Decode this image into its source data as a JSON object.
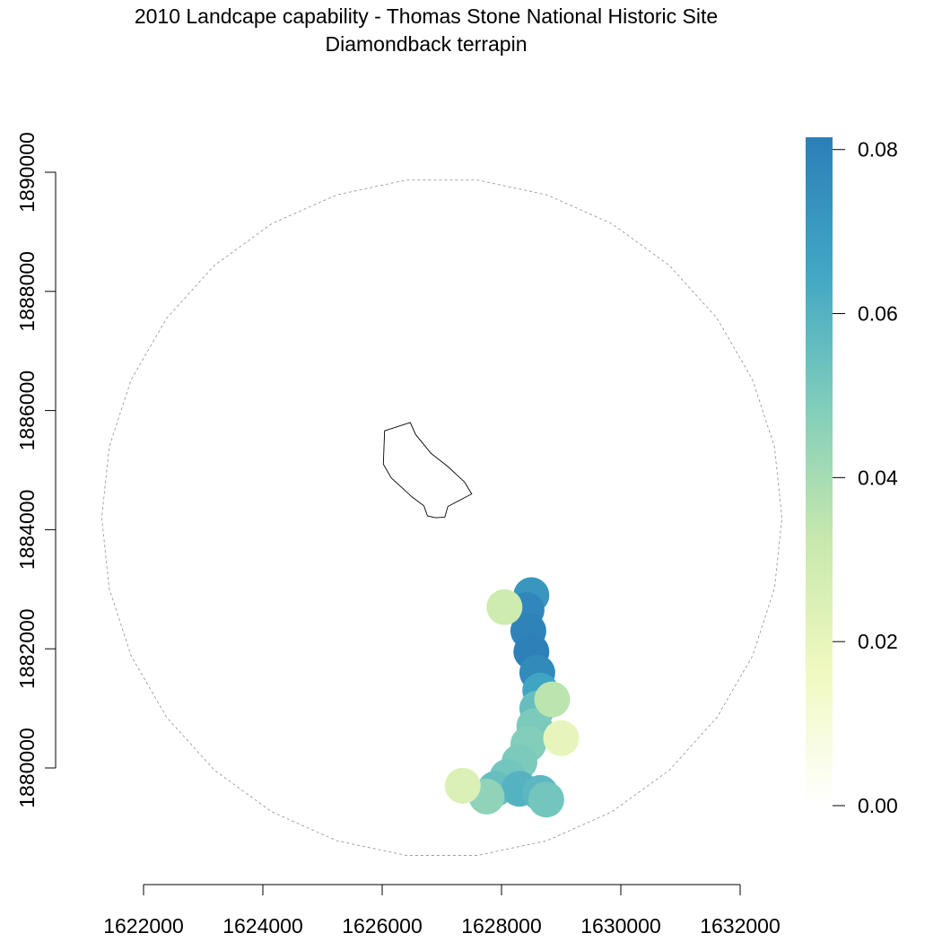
{
  "chart_data": {
    "type": "heatmap",
    "title": "2010 Landcape capability - Thomas Stone National Historic Site",
    "subtitle": "Diamondback terrapin",
    "xlabel": "",
    "ylabel": "",
    "x_ticks": [
      1622000,
      1624000,
      1626000,
      1628000,
      1630000,
      1632000
    ],
    "y_ticks": [
      1880000,
      1882000,
      1884000,
      1886000,
      1888000,
      1890000
    ],
    "x_tick_labels": [
      "1622000",
      "1624000",
      "1626000",
      "1628000",
      "1630000",
      "1632000"
    ],
    "y_tick_labels": [
      "1880000",
      "1882000",
      "1884000",
      "1886000",
      "1888000",
      "1890000"
    ],
    "xlim": [
      1622000,
      1632000
    ],
    "ylim": [
      1880000,
      1890000
    ],
    "legend": {
      "position": "right",
      "range": [
        0,
        0.0815
      ],
      "ticks": [
        0,
        0.02,
        0.04,
        0.06,
        0.08
      ],
      "tick_labels": [
        "0.00",
        "0.02",
        "0.04",
        "0.06",
        "0.08"
      ],
      "colors": [
        "#ffffff",
        "#f0f9c0",
        "#c7e8ad",
        "#7fcdbb",
        "#41a6c4",
        "#2c7fb8"
      ]
    },
    "buffer_circle": {
      "center": [
        1627000,
        1884200
      ],
      "radius": 5700,
      "style": "dashed grey"
    },
    "park_boundary": [
      [
        1626040,
        1885660
      ],
      [
        1626470,
        1885800
      ],
      [
        1626560,
        1885600
      ],
      [
        1626820,
        1885280
      ],
      [
        1627100,
        1885060
      ],
      [
        1627380,
        1884800
      ],
      [
        1627500,
        1884600
      ],
      [
        1627100,
        1884390
      ],
      [
        1627050,
        1884210
      ],
      [
        1626900,
        1884200
      ],
      [
        1626760,
        1884230
      ],
      [
        1626700,
        1884400
      ],
      [
        1626500,
        1884550
      ],
      [
        1626150,
        1884870
      ],
      [
        1626020,
        1885100
      ],
      [
        1626040,
        1885660
      ]
    ],
    "capability_surface": {
      "units": "landscape capability index",
      "columns": [
        "x",
        "y",
        "value"
      ],
      "cells": [
        [
          1628500,
          1882900,
          0.072
        ],
        [
          1628420,
          1882650,
          0.078
        ],
        [
          1628450,
          1882300,
          0.08
        ],
        [
          1628500,
          1881950,
          0.081
        ],
        [
          1628600,
          1881600,
          0.077
        ],
        [
          1628650,
          1881300,
          0.066
        ],
        [
          1628600,
          1881000,
          0.055
        ],
        [
          1628550,
          1880700,
          0.05
        ],
        [
          1628450,
          1880400,
          0.048
        ],
        [
          1628300,
          1880100,
          0.05
        ],
        [
          1628100,
          1879850,
          0.052
        ],
        [
          1627900,
          1879650,
          0.055
        ],
        [
          1628300,
          1879650,
          0.06
        ],
        [
          1628650,
          1879580,
          0.058
        ],
        [
          1627750,
          1879520,
          0.045
        ],
        [
          1627350,
          1879700,
          0.025
        ],
        [
          1628050,
          1882700,
          0.03
        ],
        [
          1628850,
          1881150,
          0.035
        ],
        [
          1629000,
          1880500,
          0.02
        ],
        [
          1628750,
          1879470,
          0.052
        ]
      ]
    }
  }
}
